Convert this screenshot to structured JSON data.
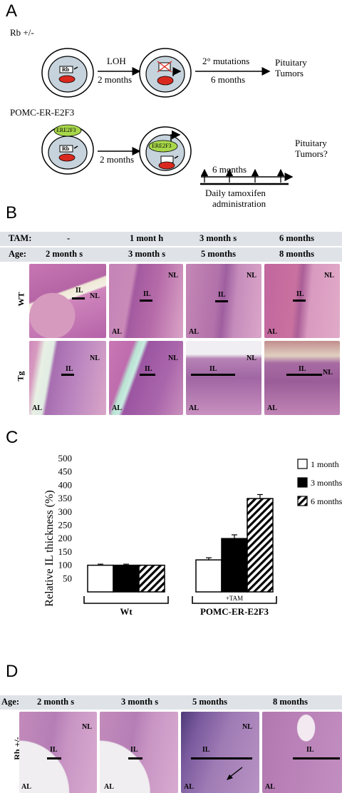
{
  "panelA": {
    "letter": "A",
    "rb_label": "Rb +/-",
    "rb_gene": "Rb",
    "wt_gene": "Rb",
    "loh": "LOH",
    "two_months_1": "2 months",
    "secondary": "2° mutations",
    "six_months_1": "6 months",
    "pituitary": "Pituitary",
    "tumors": "Tumors",
    "pomc_label": "POMC-ER-E2F3",
    "ere_label": "ERE2F3",
    "two_months_2": "2 months",
    "six_months_2": "6 months",
    "tumors_q": "Tumors?",
    "daily": "Daily tamoxifen",
    "admin": "administration"
  },
  "panelB": {
    "letter": "B",
    "tam_label": "TAM:",
    "age_label": "Age:",
    "tam": [
      "-",
      "1 mont h",
      "3 month s",
      "6 months"
    ],
    "age": [
      "2 month s",
      "3 month s",
      "5 months",
      "8 months"
    ],
    "row_wt": "WT",
    "row_tg": "Tg",
    "tags": {
      "nl": "NL",
      "il": "IL",
      "al": "AL"
    }
  },
  "panelD": {
    "letter": "D",
    "age_label": "Age:",
    "age": [
      "2 month s",
      "3 month s",
      "5 months",
      "8 months"
    ],
    "row": "Rb +/-"
  },
  "chart_data": {
    "type": "bar",
    "letter": "C",
    "ylabel": "Relative IL thickness (%)",
    "ytick_labels": [
      "50",
      "100",
      "150",
      "200",
      "250",
      "300",
      "350",
      "400",
      "450",
      "500"
    ],
    "ylim": [
      0,
      500
    ],
    "groups": [
      "Wt",
      "POMC-ER-E2F3"
    ],
    "group_note": "+TAM",
    "series": [
      {
        "name": "1 month",
        "values": [
          100,
          120
        ],
        "errors": [
          4,
          8
        ],
        "fill": "white"
      },
      {
        "name": "3 months",
        "values": [
          100,
          200
        ],
        "errors": [
          4,
          14
        ],
        "fill": "black"
      },
      {
        "name": "6 months",
        "values": [
          100,
          350
        ],
        "errors": [
          0,
          15
        ],
        "fill": "hatched"
      }
    ],
    "legend_position": "top-right"
  },
  "colors": {
    "band": "#dfe3e8",
    "nucleus": "#c6d3dc",
    "rb_oval": "#d9291f",
    "ere_oval": "#a8d84a",
    "tissue_pink": "#d9a0c4",
    "tissue_purple": "#9a5fa6"
  }
}
